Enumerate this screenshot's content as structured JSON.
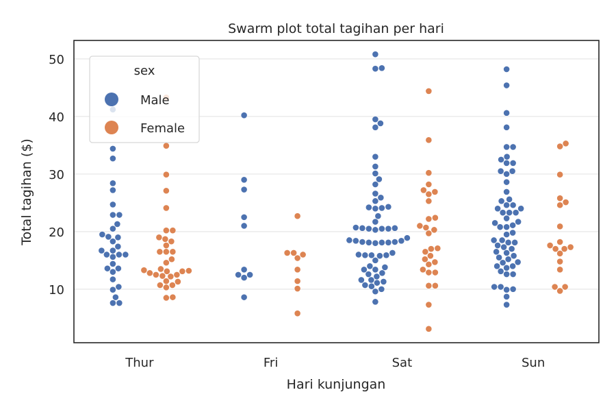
{
  "chart_data": {
    "type": "swarm",
    "title": "Swarm plot total tagihan per hari",
    "xlabel": "Hari kunjungan",
    "ylabel": "Total tagihan ($)",
    "categories": [
      "Thur",
      "Fri",
      "Sat",
      "Sun"
    ],
    "yticks": [
      10,
      20,
      30,
      40,
      50
    ],
    "ylim": [
      0.7,
      53.2
    ],
    "grid": "horizontal",
    "legend": {
      "title": "sex",
      "placement": "upper-left"
    },
    "series": [
      {
        "name": "Male",
        "color": "#4c72b0",
        "values": {
          "Thur": [
            41.2,
            34.4,
            32.7,
            28.4,
            27.2,
            24.7,
            22.9,
            22.9,
            21.3,
            20.5,
            19.5,
            19.0,
            19.1,
            18.3,
            17.4,
            16.7,
            16.7,
            16.0,
            16.0,
            16.0,
            15.6,
            14.4,
            13.6,
            13.6,
            13.0,
            11.7,
            10.4,
            9.9,
            8.6,
            7.6,
            7.6
          ],
          "Fri": [
            40.2,
            29.0,
            27.3,
            22.5,
            21.0,
            13.4,
            12.5,
            12.5,
            12.0,
            8.6
          ],
          "Sat": [
            50.8,
            48.4,
            48.3,
            39.5,
            38.8,
            38.1,
            33.0,
            31.3,
            30.1,
            29.1,
            28.2,
            26.6,
            25.9,
            25.3,
            24.3,
            24.2,
            24.1,
            24.0,
            22.7,
            21.7,
            20.7,
            20.6,
            20.5,
            20.3,
            20.5,
            20.5,
            20.6,
            18.5,
            18.4,
            18.2,
            18.1,
            18.0,
            18.1,
            18.1,
            18.2,
            18.4,
            18.9,
            16.3,
            15.9,
            15.9,
            15.8,
            15.9,
            16.0,
            15.0,
            14.0,
            13.4,
            13.4,
            13.8,
            12.6,
            12.8,
            12.2,
            11.6,
            11.3,
            11.1,
            11.6,
            10.5,
            10.7,
            10.0,
            9.6,
            7.8
          ],
          "Sun": [
            48.2,
            45.4,
            40.6,
            38.1,
            34.7,
            34.7,
            33.0,
            32.5,
            31.9,
            31.9,
            30.5,
            30.5,
            30.0,
            28.6,
            26.9,
            25.6,
            25.3,
            24.6,
            24.6,
            24.0,
            24.0,
            23.3,
            23.3,
            23.3,
            22.3,
            21.7,
            21.5,
            21.1,
            20.8,
            20.8,
            19.8,
            19.5,
            18.5,
            18.5,
            18.1,
            18.1,
            17.6,
            17.3,
            17.0,
            16.5,
            16.3,
            15.8,
            15.5,
            15.2,
            14.7,
            14.6,
            14.0,
            14.0,
            13.7,
            13.1,
            12.6,
            12.6,
            10.4,
            10.4,
            9.9,
            10.0,
            8.7,
            7.3
          ]
        }
      },
      {
        "name": "Female",
        "color": "#dd8452",
        "values": {
          "Thur": [
            43.3,
            34.9,
            29.9,
            27.1,
            24.1,
            20.2,
            20.2,
            19.0,
            18.3,
            18.7,
            17.6,
            16.5,
            16.5,
            16.5,
            14.6,
            15.2,
            13.3,
            13.5,
            13.2,
            13.1,
            13.1,
            12.8,
            12.5,
            12.5,
            12.2,
            12.3,
            11.3,
            11.4,
            10.7,
            10.7,
            10.3,
            8.6,
            8.5
          ],
          "Fri": [
            22.7,
            16.3,
            16.3,
            16.0,
            15.4,
            13.4,
            11.4,
            10.1,
            5.8
          ],
          "Sat": [
            44.4,
            35.9,
            30.2,
            28.2,
            27.2,
            26.9,
            26.5,
            25.3,
            22.4,
            22.2,
            21.0,
            20.7,
            20.3,
            19.7,
            17.1,
            17.0,
            16.5,
            15.8,
            15.2,
            14.7,
            14.3,
            13.4,
            12.9,
            12.9,
            10.6,
            10.6,
            7.3,
            3.1
          ],
          "Sun": [
            35.3,
            34.8,
            29.9,
            25.8,
            25.1,
            24.6,
            20.9,
            18.2,
            17.6,
            17.3,
            17.0,
            17.0,
            16.2,
            14.8,
            13.4,
            10.4,
            10.4,
            9.7
          ]
        }
      }
    ]
  }
}
